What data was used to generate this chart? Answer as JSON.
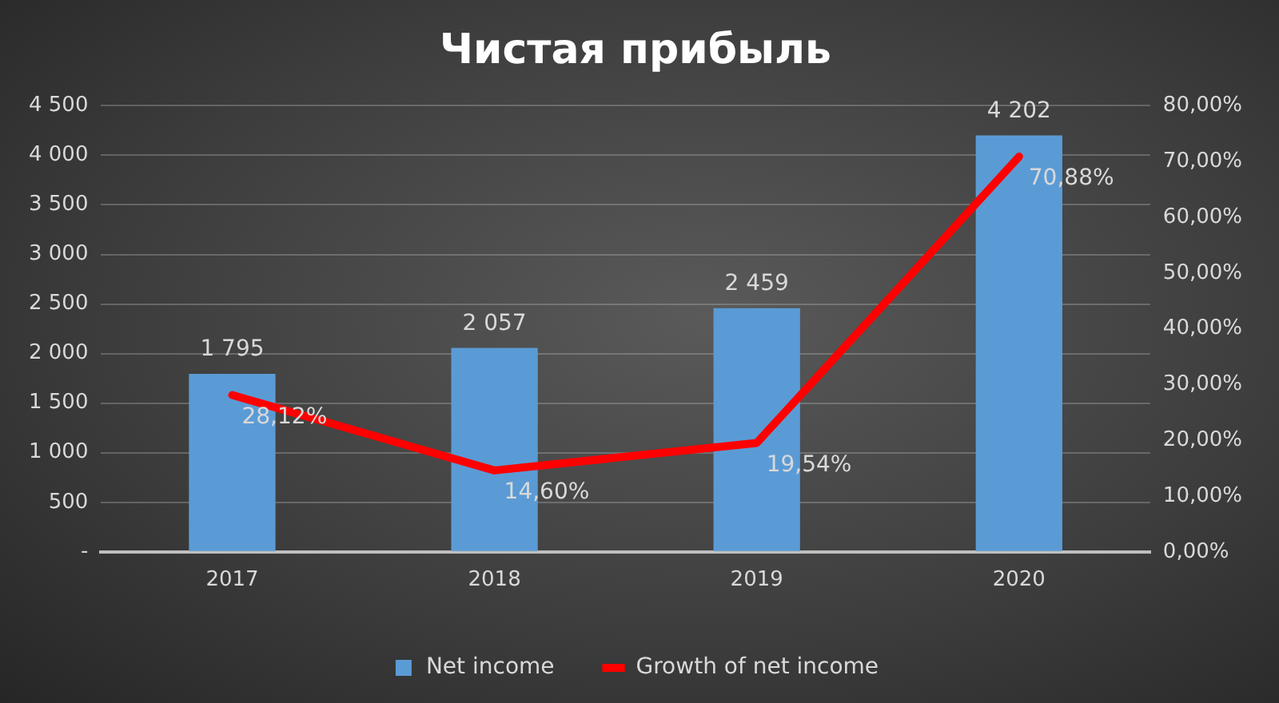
{
  "chart_data": {
    "type": "bar",
    "title": "Чистая прибыль",
    "categories": [
      "2017",
      "2018",
      "2019",
      "2020"
    ],
    "series": [
      {
        "name": "Net income",
        "color": "#5b9bd5",
        "values": [
          1795,
          2057,
          2459,
          4202
        ],
        "value_labels": [
          "1 795",
          "2 057",
          "2 459",
          "4 202"
        ]
      },
      {
        "name": "Growth of net income",
        "type": "line",
        "axis": "y2",
        "color": "#ff0000",
        "values": [
          28.12,
          14.6,
          19.54,
          70.88
        ],
        "value_labels": [
          "28,12%",
          "14,60%",
          "19,54%",
          "70,88%"
        ]
      }
    ],
    "ylim": [
      0,
      4500
    ],
    "yticks": [
      {
        "value": 0,
        "label": "-"
      },
      {
        "value": 500,
        "label": "500"
      },
      {
        "value": 1000,
        "label": "1 000"
      },
      {
        "value": 1500,
        "label": "1 500"
      },
      {
        "value": 2000,
        "label": "2 000"
      },
      {
        "value": 2500,
        "label": "2 500"
      },
      {
        "value": 3000,
        "label": "3 000"
      },
      {
        "value": 3500,
        "label": "3 500"
      },
      {
        "value": 4000,
        "label": "4 000"
      },
      {
        "value": 4500,
        "label": "4 500"
      }
    ],
    "y2lim": [
      0,
      80
    ],
    "y2ticks": [
      {
        "value": 0,
        "label": "0,00%"
      },
      {
        "value": 10,
        "label": "10,00%"
      },
      {
        "value": 20,
        "label": "20,00%"
      },
      {
        "value": 30,
        "label": "30,00%"
      },
      {
        "value": 40,
        "label": "40,00%"
      },
      {
        "value": 50,
        "label": "50,00%"
      },
      {
        "value": 60,
        "label": "60,00%"
      },
      {
        "value": 70,
        "label": "70,00%"
      },
      {
        "value": 80,
        "label": "80,00%"
      }
    ],
    "grid": "y",
    "legend": "bottom"
  }
}
